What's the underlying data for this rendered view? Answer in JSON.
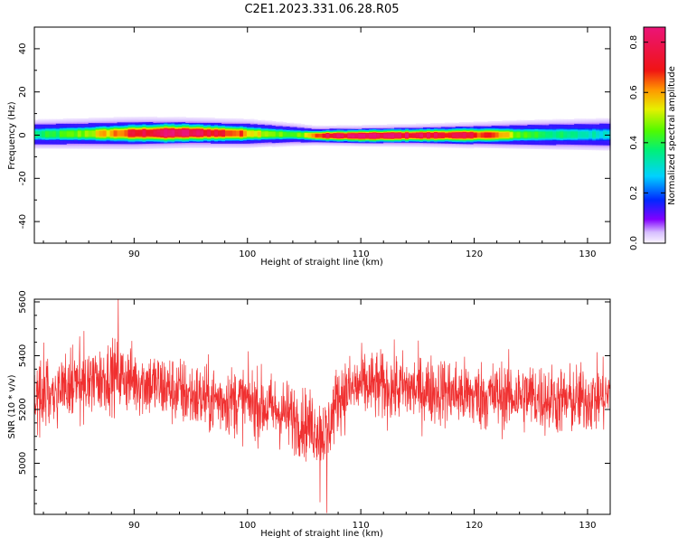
{
  "title": "C2E1.2023.331.06.28.R05",
  "chart_data": [
    {
      "type": "heatmap",
      "xlabel": "Height of straight line (km)",
      "ylabel": "Frequency (Hz)",
      "xlim": [
        81.2,
        132.0
      ],
      "ylim": [
        -50,
        50
      ],
      "xticks": [
        90,
        100,
        110,
        120,
        130
      ],
      "yticks": [
        -40,
        -20,
        0,
        20,
        40
      ],
      "band": {
        "center_freq_hz": [
          [
            81.2,
            0.3
          ],
          [
            90,
            0.8
          ],
          [
            95,
            1.0
          ],
          [
            100,
            0.6
          ],
          [
            104,
            0.2
          ],
          [
            106,
            -0.3
          ],
          [
            110,
            -0.4
          ],
          [
            115,
            -0.2
          ],
          [
            120,
            -0.1
          ],
          [
            125,
            0.1
          ],
          [
            132,
            0.2
          ]
        ],
        "halfwidth_hz": [
          [
            81.2,
            4.5
          ],
          [
            90,
            5.0
          ],
          [
            100,
            4.5
          ],
          [
            106,
            3.0
          ],
          [
            115,
            3.5
          ],
          [
            125,
            4.5
          ],
          [
            132,
            5.0
          ]
        ],
        "peak_amplitude": [
          [
            81.2,
            0.35
          ],
          [
            85,
            0.45
          ],
          [
            90,
            0.7
          ],
          [
            93,
            0.85
          ],
          [
            97,
            0.75
          ],
          [
            101,
            0.55
          ],
          [
            104,
            0.4
          ],
          [
            107,
            0.75
          ],
          [
            110,
            0.85
          ],
          [
            114,
            0.8
          ],
          [
            118,
            0.75
          ],
          [
            121,
            0.7
          ],
          [
            124,
            0.45
          ],
          [
            128,
            0.35
          ],
          [
            132,
            0.3
          ]
        ]
      },
      "colorbar": {
        "label": "Normalized spectral amplitude",
        "range": [
          0.0,
          0.86
        ],
        "ticks": [
          "0.0",
          "0.2",
          "0.4",
          "0.6",
          "0.8"
        ],
        "tick_values": [
          0.0,
          0.2,
          0.4,
          0.6,
          0.8
        ]
      }
    },
    {
      "type": "line",
      "xlabel": "Height of straight line (km)",
      "ylabel": "SNR (10 * v/v)",
      "xlim": [
        81.2,
        132.0
      ],
      "ylim": [
        4810,
        5610
      ],
      "xticks": [
        90,
        100,
        110,
        120,
        130
      ],
      "yticks": [
        5000,
        5200,
        5400,
        5600
      ],
      "series": [
        {
          "color": "#f03030",
          "mean_profile": [
            [
              81.2,
              5260
            ],
            [
              85,
              5290
            ],
            [
              88,
              5330
            ],
            [
              92,
              5290
            ],
            [
              96,
              5240
            ],
            [
              100,
              5230
            ],
            [
              103,
              5190
            ],
            [
              106,
              5130
            ],
            [
              107,
              5110
            ],
            [
              108,
              5250
            ],
            [
              110,
              5290
            ],
            [
              113,
              5280
            ],
            [
              117,
              5270
            ],
            [
              120,
              5250
            ],
            [
              125,
              5250
            ],
            [
              128,
              5230
            ],
            [
              132,
              5250
            ]
          ],
          "noise_amplitude": 85,
          "samples_per_km": 40,
          "extremes": [
            [
              88.6,
              5610
            ],
            [
              107.0,
              4815
            ],
            [
              106.4,
              4855
            ]
          ]
        }
      ]
    }
  ]
}
